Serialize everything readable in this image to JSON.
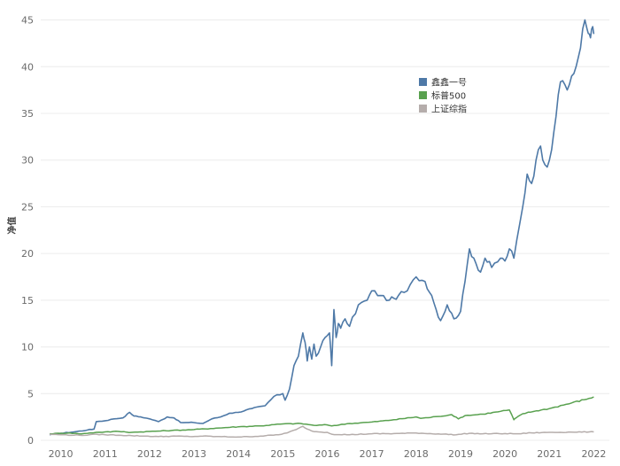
{
  "chart_data": {
    "type": "line",
    "title": "",
    "xlabel": "",
    "ylabel": "净值",
    "ylim": [
      0,
      46
    ],
    "yticks": [
      0,
      5,
      10,
      15,
      20,
      25,
      30,
      35,
      40,
      45
    ],
    "xlim": [
      2009.55,
      2022.35
    ],
    "xticks": [
      2010,
      2011,
      2012,
      2013,
      2014,
      2015,
      2016,
      2017,
      2018,
      2019,
      2020,
      2021,
      2022
    ],
    "grid": true,
    "legend_position": "top-center",
    "series": [
      {
        "name": "鑫鑫一号",
        "color": "#4e79a7",
        "x": [
          2009.75,
          2010.0,
          2010.3,
          2010.6,
          2010.75,
          2010.8,
          2011.0,
          2011.2,
          2011.4,
          2011.55,
          2011.65,
          2011.8,
          2012.0,
          2012.2,
          2012.4,
          2012.55,
          2012.7,
          2013.0,
          2013.2,
          2013.4,
          2013.6,
          2013.8,
          2014.0,
          2014.3,
          2014.6,
          2014.8,
          2015.0,
          2015.05,
          2015.15,
          2015.25,
          2015.35,
          2015.45,
          2015.5,
          2015.55,
          2015.6,
          2015.65,
          2015.7,
          2015.75,
          2015.85,
          2015.95,
          2016.05,
          2016.1,
          2016.15,
          2016.2,
          2016.25,
          2016.3,
          2016.4,
          2016.5,
          2016.7,
          2016.9,
          2017.0,
          2017.2,
          2017.4,
          2017.5,
          2017.6,
          2017.8,
          2018.0,
          2018.2,
          2018.35,
          2018.45,
          2018.55,
          2018.7,
          2018.85,
          2019.0,
          2019.1,
          2019.2,
          2019.3,
          2019.45,
          2019.55,
          2019.7,
          2019.9,
          2020.0,
          2020.1,
          2020.2,
          2020.4,
          2020.5,
          2020.6,
          2020.7,
          2020.8,
          2020.9,
          2021.0,
          2021.1,
          2021.2,
          2021.3,
          2021.4,
          2021.5,
          2021.6,
          2021.7,
          2021.8,
          2021.85,
          2021.9,
          2021.95,
          2022.0
        ],
        "y": [
          0.6,
          0.75,
          0.9,
          1.1,
          1.2,
          2.0,
          2.1,
          2.3,
          2.4,
          3.0,
          2.6,
          2.5,
          2.3,
          2.0,
          2.5,
          2.4,
          1.9,
          1.9,
          1.8,
          2.3,
          2.5,
          2.9,
          3.0,
          3.4,
          3.7,
          4.7,
          5.0,
          4.3,
          5.5,
          8.0,
          9.0,
          11.5,
          10.5,
          8.5,
          10.0,
          8.7,
          10.3,
          9.0,
          10.0,
          11.0,
          11.5,
          8.0,
          14.0,
          11.0,
          12.5,
          12.0,
          13.0,
          12.2,
          14.5,
          15.0,
          16.0,
          15.5,
          15.0,
          15.2,
          15.5,
          16.0,
          17.5,
          17.0,
          15.5,
          14.0,
          12.8,
          14.5,
          13.0,
          13.8,
          17.0,
          20.5,
          19.5,
          18.0,
          19.5,
          18.5,
          19.5,
          19.2,
          20.5,
          19.5,
          25.0,
          28.5,
          27.5,
          30.0,
          31.5,
          29.5,
          30.0,
          33.0,
          37.0,
          38.5,
          37.5,
          39.0,
          40.0,
          42.0,
          45.0,
          44.0,
          43.5,
          44.0,
          43.5
        ]
      },
      {
        "name": "标普500",
        "color": "#59a14f",
        "x": [
          2009.75,
          2010.0,
          2010.2,
          2010.4,
          2010.6,
          2010.8,
          2011.0,
          2011.3,
          2011.6,
          2011.8,
          2012.0,
          2012.5,
          2013.0,
          2013.5,
          2014.0,
          2014.5,
          2015.0,
          2015.4,
          2015.7,
          2016.0,
          2016.1,
          2016.5,
          2017.0,
          2017.5,
          2018.0,
          2018.1,
          2018.5,
          2018.8,
          2018.95,
          2019.1,
          2019.5,
          2019.9,
          2020.1,
          2020.2,
          2020.25,
          2020.4,
          2020.7,
          2021.0,
          2021.5,
          2021.9,
          2022.0
        ],
        "y": [
          0.7,
          0.75,
          0.8,
          0.7,
          0.75,
          0.85,
          0.9,
          0.95,
          0.85,
          0.9,
          0.95,
          1.05,
          1.15,
          1.3,
          1.45,
          1.55,
          1.75,
          1.8,
          1.6,
          1.65,
          1.55,
          1.8,
          1.95,
          2.2,
          2.5,
          2.35,
          2.55,
          2.75,
          2.3,
          2.65,
          2.8,
          3.1,
          3.25,
          2.2,
          2.4,
          2.85,
          3.15,
          3.4,
          4.0,
          4.5,
          4.65
        ]
      },
      {
        "name": "上证综指",
        "color": "#b5adab",
        "x": [
          2009.75,
          2010.0,
          2010.3,
          2010.6,
          2010.8,
          2011.0,
          2011.3,
          2011.6,
          2011.9,
          2012.2,
          2012.6,
          2012.9,
          2013.2,
          2013.5,
          2014.0,
          2014.5,
          2014.9,
          2015.1,
          2015.3,
          2015.45,
          2015.55,
          2015.65,
          2015.8,
          2016.0,
          2016.1,
          2016.5,
          2017.0,
          2017.5,
          2018.0,
          2018.5,
          2018.9,
          2019.2,
          2019.5,
          2020.0,
          2020.3,
          2020.6,
          2021.0,
          2021.5,
          2021.9,
          2022.0
        ],
        "y": [
          0.65,
          0.6,
          0.55,
          0.55,
          0.65,
          0.6,
          0.55,
          0.5,
          0.45,
          0.4,
          0.45,
          0.4,
          0.45,
          0.4,
          0.35,
          0.45,
          0.6,
          0.8,
          1.15,
          1.5,
          1.2,
          1.0,
          0.9,
          0.85,
          0.65,
          0.6,
          0.7,
          0.72,
          0.78,
          0.68,
          0.6,
          0.75,
          0.7,
          0.72,
          0.7,
          0.8,
          0.85,
          0.88,
          0.9,
          0.9
        ]
      }
    ]
  }
}
